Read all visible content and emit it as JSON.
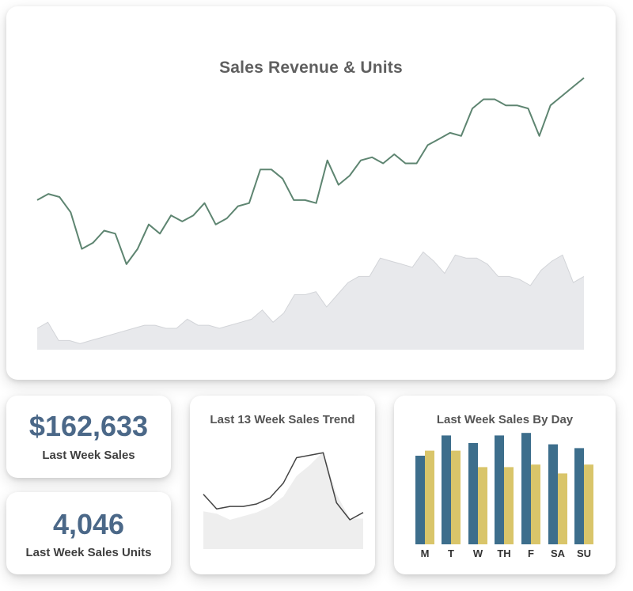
{
  "main": {
    "title": "Sales Revenue & Units"
  },
  "kpis": {
    "last_week_sales_value": "$162,633",
    "last_week_sales_label": "Last Week Sales",
    "last_week_units_value": "4,046",
    "last_week_units_label": "Last Week Sales Units"
  },
  "trend": {
    "title": "Last 13 Week Sales Trend"
  },
  "by_day": {
    "title": "Last Week Sales By Day"
  },
  "colors": {
    "revenue_line": "#5e8571",
    "units_area": "#e8e9ec",
    "units_area_stroke": "#d2d4d8",
    "trend_line": "#444444",
    "trend_area": "#eeeeee",
    "bar_blue": "#3d6e8c",
    "bar_gold": "#d9c56a",
    "kpi_value": "#4b6888"
  },
  "chart_data": [
    {
      "type": "line",
      "title": "Sales Revenue & Units",
      "ylim": [
        0,
        100
      ],
      "grid": false,
      "series": [
        {
          "values": [
            49,
            51,
            50,
            45,
            33,
            35,
            39,
            38,
            28,
            33,
            41,
            38,
            44,
            42,
            44,
            48,
            41,
            43,
            47,
            48,
            59,
            59,
            56,
            49,
            49,
            48,
            62,
            54,
            57,
            62,
            63,
            61,
            64,
            61,
            61,
            67,
            69,
            71,
            70,
            79,
            82,
            82,
            80,
            80,
            79,
            70,
            80,
            83,
            86,
            89
          ]
        },
        {
          "values": [
            7,
            9,
            3,
            3,
            2,
            3,
            4,
            5,
            6,
            7,
            8,
            8,
            7,
            7,
            10,
            8,
            8,
            7,
            8,
            9,
            10,
            13,
            9,
            12,
            18,
            18,
            19,
            14,
            18,
            22,
            24,
            24,
            30,
            29,
            28,
            27,
            32,
            29,
            25,
            31,
            30,
            30,
            28,
            24,
            24,
            23,
            21,
            26,
            29,
            31,
            22,
            24
          ]
        }
      ]
    },
    {
      "type": "area",
      "title": "Last 13 Week Sales Trend",
      "ylim": [
        0,
        100
      ],
      "grid": false,
      "series": [
        {
          "values": [
            45,
            33,
            35,
            35,
            37,
            42,
            54,
            75,
            77,
            79,
            38,
            24,
            30
          ]
        },
        {
          "values": [
            31,
            29,
            24,
            27,
            30,
            35,
            43,
            60,
            69,
            80,
            45,
            25,
            25
          ]
        }
      ]
    },
    {
      "type": "bar",
      "title": "Last Week Sales By Day",
      "categories": [
        "M",
        "T",
        "W",
        "TH",
        "F",
        "SA",
        "SU"
      ],
      "ylim": [
        0,
        100
      ],
      "grid": false,
      "series": [
        {
          "values": [
            70,
            86,
            80,
            86,
            88,
            79,
            76
          ]
        },
        {
          "values": [
            74,
            74,
            61,
            61,
            63,
            56,
            63
          ]
        }
      ]
    }
  ]
}
